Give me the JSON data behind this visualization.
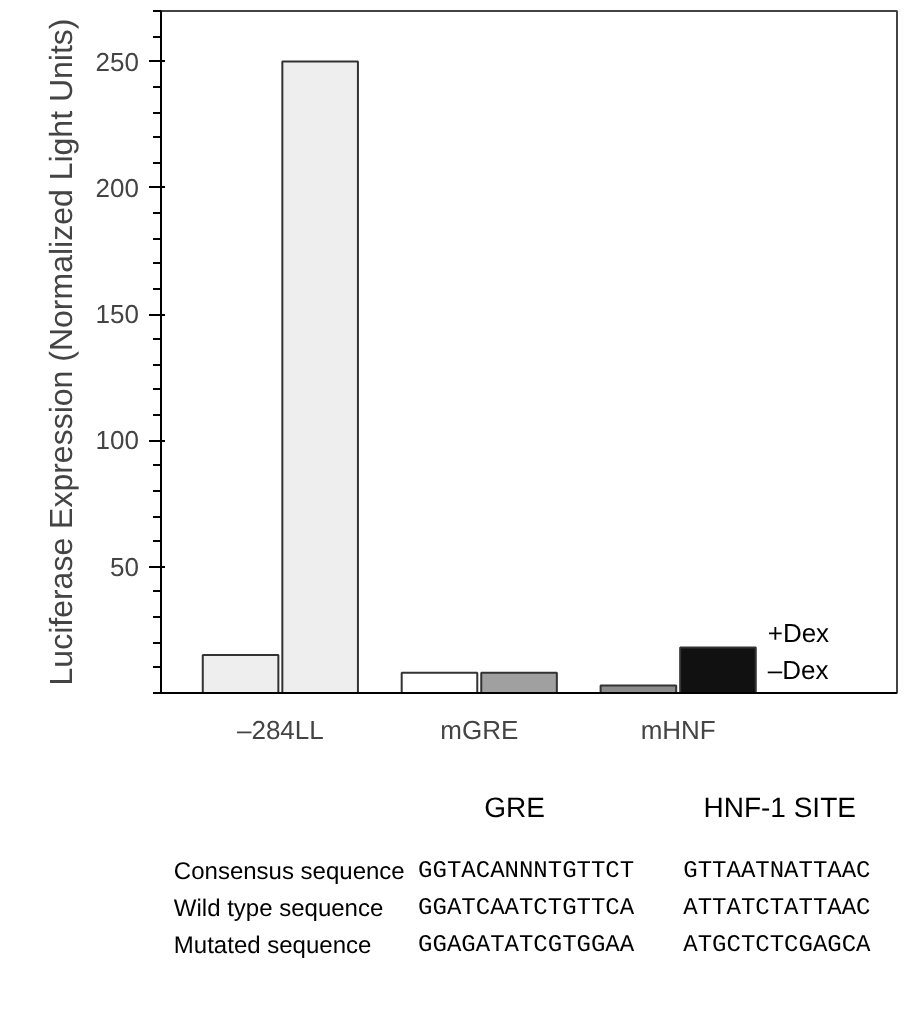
{
  "chart_data": {
    "type": "bar",
    "ylabel": "Luciferase Expression (Normalized Light Units)",
    "categories": [
      "–284LL",
      "mGRE",
      "mHNF"
    ],
    "series": [
      {
        "name": "–Dex",
        "colors": [
          "#eeeeee",
          "#ffffff",
          "#8c8c8c"
        ],
        "values": [
          15,
          8,
          3
        ]
      },
      {
        "name": "+Dex",
        "colors": [
          "#eeeeee",
          "#a0a0a0",
          "#111111"
        ],
        "values": [
          250,
          8,
          18
        ]
      }
    ],
    "ylim": [
      0,
      270
    ],
    "yticks": [
      50,
      100,
      150,
      200,
      250
    ],
    "grid": false,
    "legend": false,
    "annotations": [
      "GRE",
      "HNF-1 SITE",
      "Consensus sequence",
      "GGTACANNNTGTTCT",
      "GTTAATNATTAAC",
      "Wild type sequence",
      "GGATCAATCTGTTCA",
      "ATTATCTATTAAC",
      "Mutated sequence",
      "GGAGATATCGTGGAA",
      "ATGCTCTCGAGCA"
    ]
  }
}
